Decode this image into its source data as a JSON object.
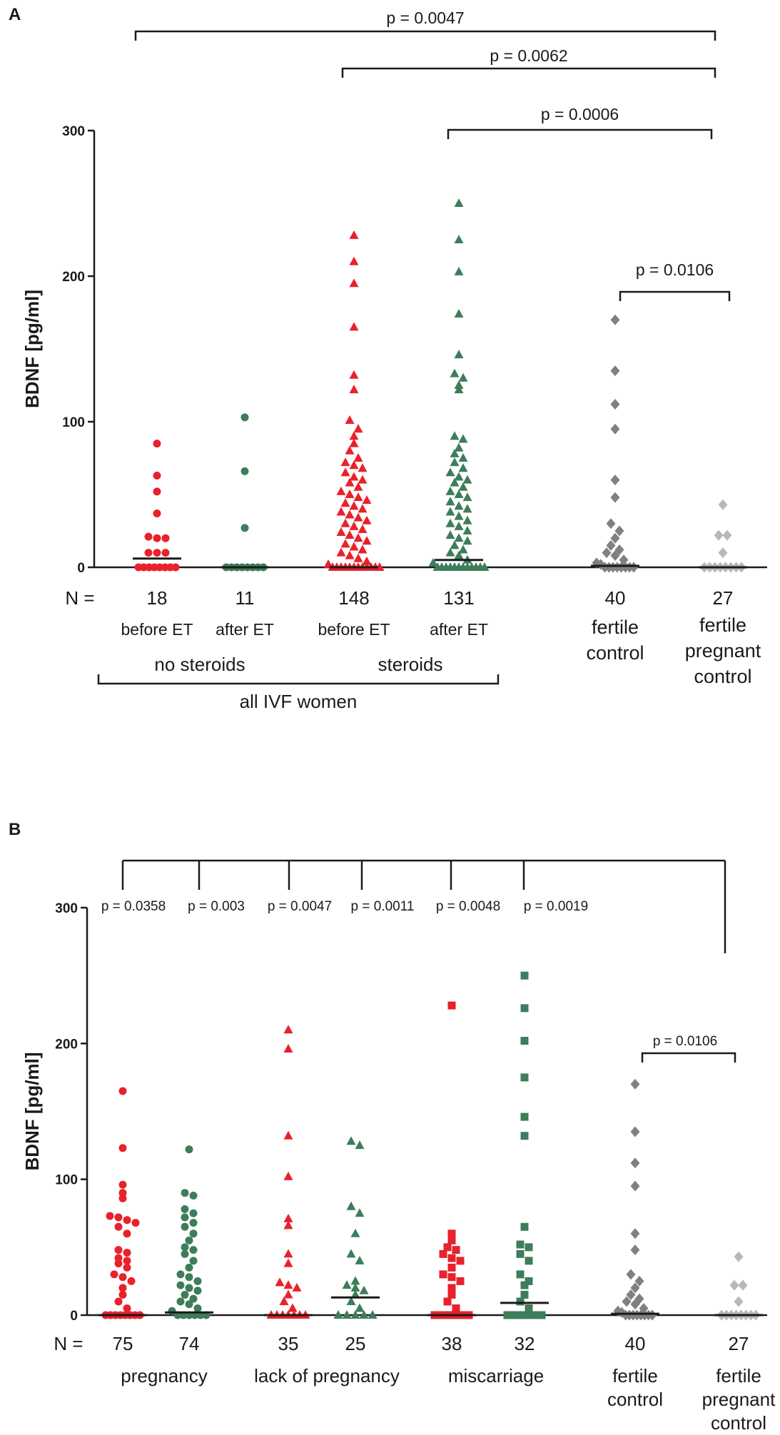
{
  "colors": {
    "red": "#e8212b",
    "green": "#3e7d5a",
    "gray_dark": "#808080",
    "gray_light": "#b8b8b8",
    "axis": "#1a1a1a"
  },
  "chart_data": [
    {
      "panel": "A",
      "type": "scatter",
      "title": "",
      "ylabel": "BDNF [pg/ml]",
      "ylim": [
        0,
        300
      ],
      "yticks": [
        "0",
        "100",
        "200",
        "300"
      ],
      "n_prefix": "N =",
      "groups": [
        {
          "n": "18",
          "label": [
            "before ET"
          ],
          "marker": "circle",
          "color": "red",
          "median": 6,
          "values": [
            85,
            63,
            52,
            37,
            21,
            20,
            20,
            10,
            10,
            10,
            0,
            0,
            0,
            0,
            0,
            0,
            0,
            0
          ]
        },
        {
          "n": "11",
          "label": [
            "after ET"
          ],
          "marker": "circle",
          "color": "green",
          "median": 0,
          "values": [
            103,
            66,
            27,
            0,
            0,
            0,
            0,
            0,
            0,
            0,
            0
          ]
        },
        {
          "n": "148",
          "label": [
            "before ET"
          ],
          "marker": "triangle",
          "color": "red",
          "median": 0,
          "values": [
            228,
            210,
            195,
            165,
            132,
            122,
            101,
            95,
            90,
            85,
            80,
            75,
            72,
            70,
            68,
            65,
            62,
            60,
            58,
            55,
            52,
            50,
            48,
            46,
            44,
            42,
            40,
            38,
            36,
            34,
            32,
            30,
            28,
            26,
            24,
            22,
            20,
            18,
            16,
            14,
            12,
            10,
            8,
            6,
            4,
            2,
            0,
            0,
            0,
            0,
            0,
            0,
            0,
            0,
            0,
            0,
            0,
            0
          ]
        },
        {
          "n": "131",
          "label": [
            "after ET"
          ],
          "marker": "triangle",
          "color": "green",
          "median": 5,
          "values": [
            250,
            225,
            203,
            174,
            146,
            133,
            130,
            125,
            122,
            90,
            88,
            82,
            78,
            75,
            72,
            68,
            65,
            62,
            60,
            58,
            55,
            52,
            50,
            48,
            45,
            42,
            40,
            38,
            35,
            32,
            30,
            28,
            25,
            22,
            20,
            18,
            15,
            12,
            10,
            8,
            5,
            3,
            0,
            0,
            0,
            0,
            0,
            0,
            0,
            0,
            0,
            0,
            0,
            0
          ]
        },
        {
          "n": "40",
          "label": [
            "fertile",
            "control"
          ],
          "marker": "diamond",
          "color": "gray_dark",
          "median": 1,
          "values": [
            170,
            135,
            112,
            95,
            60,
            48,
            30,
            25,
            20,
            15,
            12,
            10,
            8,
            5,
            3,
            2,
            0,
            0,
            0,
            0,
            0,
            0,
            0,
            0
          ]
        },
        {
          "n": "27",
          "label": [
            "fertile",
            "pregnant",
            "control"
          ],
          "marker": "diamond",
          "color": "gray_light",
          "median": 0,
          "values": [
            43,
            22,
            22,
            10,
            0,
            0,
            0,
            0,
            0,
            0,
            0,
            0
          ]
        }
      ],
      "group_labels": [
        {
          "text": "no steroids",
          "span": [
            0,
            1
          ]
        },
        {
          "text": "steroids",
          "span": [
            2,
            3
          ]
        }
      ],
      "super_label": {
        "text": "all IVF women",
        "span": [
          0,
          3
        ]
      },
      "comparisons": [
        {
          "p": "p = 0.0047",
          "from": 0,
          "to": 5
        },
        {
          "p": "p = 0.0062",
          "from": 2,
          "to": 5
        },
        {
          "p": "p = 0.0006",
          "from": 3,
          "to": 5
        },
        {
          "p": "p = 0.0106",
          "from": 4,
          "to": 5
        }
      ]
    },
    {
      "panel": "B",
      "type": "scatter",
      "title": "",
      "ylabel": "BDNF [pg/ml]",
      "ylim": [
        0,
        300
      ],
      "yticks": [
        "0",
        "100",
        "200",
        "300"
      ],
      "n_prefix": "N =",
      "groups": [
        {
          "n": "75",
          "marker": "circle",
          "color": "red",
          "median": 0,
          "values": [
            165,
            123,
            96,
            90,
            86,
            73,
            72,
            70,
            68,
            65,
            60,
            48,
            46,
            42,
            40,
            38,
            35,
            30,
            28,
            25,
            20,
            15,
            10,
            5,
            0,
            0,
            0,
            0,
            0,
            0,
            0,
            0
          ]
        },
        {
          "n": "74",
          "marker": "circle",
          "color": "green",
          "median": 2,
          "values": [
            122,
            90,
            88,
            78,
            75,
            72,
            68,
            65,
            60,
            55,
            50,
            48,
            45,
            40,
            35,
            30,
            28,
            25,
            22,
            20,
            18,
            15,
            12,
            10,
            8,
            5,
            3,
            0,
            0,
            0,
            0,
            0,
            0
          ]
        },
        {
          "n": "35",
          "marker": "triangle",
          "color": "red",
          "median": 0,
          "values": [
            210,
            196,
            132,
            102,
            71,
            66,
            45,
            38,
            24,
            22,
            20,
            15,
            10,
            5,
            0,
            0,
            0,
            0,
            0,
            0,
            0
          ]
        },
        {
          "n": "25",
          "marker": "triangle",
          "color": "green",
          "median": 13,
          "values": [
            128,
            125,
            80,
            75,
            60,
            45,
            40,
            25,
            22,
            20,
            18,
            15,
            10,
            5,
            0,
            0,
            0,
            0,
            0
          ]
        },
        {
          "n": "38",
          "marker": "square",
          "color": "red",
          "median": 0,
          "values": [
            228,
            60,
            55,
            50,
            48,
            45,
            42,
            40,
            35,
            30,
            28,
            25,
            20,
            15,
            10,
            5,
            0,
            0,
            0,
            0,
            0,
            0,
            0,
            0
          ]
        },
        {
          "n": "32",
          "marker": "square",
          "color": "green",
          "median": 9,
          "values": [
            250,
            226,
            202,
            175,
            146,
            132,
            65,
            52,
            50,
            45,
            40,
            30,
            25,
            22,
            15,
            10,
            5,
            0,
            0,
            0,
            0,
            0,
            0,
            0
          ]
        },
        {
          "n": "40",
          "label": [
            "fertile",
            "control"
          ],
          "marker": "diamond",
          "color": "gray_dark",
          "median": 1,
          "values": [
            170,
            135,
            112,
            95,
            60,
            48,
            30,
            25,
            20,
            15,
            12,
            10,
            8,
            5,
            3,
            2,
            0,
            0,
            0,
            0,
            0,
            0,
            0,
            0
          ]
        },
        {
          "n": "27",
          "label": [
            "fertile",
            "pregnant",
            "control"
          ],
          "marker": "diamond",
          "color": "gray_light",
          "median": 0,
          "values": [
            43,
            22,
            22,
            10,
            0,
            0,
            0,
            0,
            0,
            0,
            0,
            0
          ]
        }
      ],
      "category_labels": [
        {
          "text": "pregnancy",
          "span": [
            0,
            1
          ]
        },
        {
          "text": "lack of pregnancy",
          "span": [
            2,
            3
          ]
        },
        {
          "text": "miscarriage",
          "span": [
            4,
            5
          ]
        }
      ],
      "comparisons": [
        {
          "p": "p = 0.0358",
          "from": 0,
          "to": 7
        },
        {
          "p": "p = 0.003",
          "from": 1,
          "to": 7
        },
        {
          "p": "p = 0.0047",
          "from": 2,
          "to": 7
        },
        {
          "p": "p = 0.0011",
          "from": 3,
          "to": 7
        },
        {
          "p": "p = 0.0048",
          "from": 4,
          "to": 7
        },
        {
          "p": "p = 0.0019",
          "from": 5,
          "to": 7
        },
        {
          "p": "p = 0.0106",
          "from": 6,
          "to": 7
        }
      ]
    }
  ]
}
